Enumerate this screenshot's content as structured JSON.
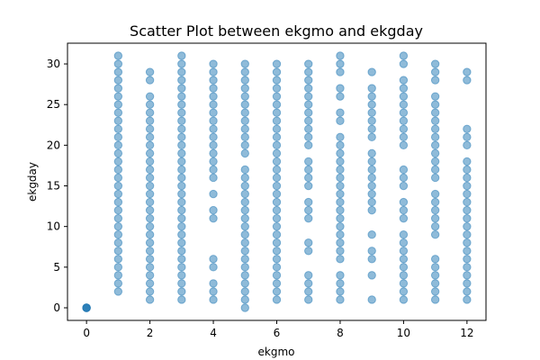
{
  "chart_data": {
    "type": "scatter",
    "title": "Scatter Plot between ekgmo and ekgday",
    "xlabel": "ekgmo",
    "ylabel": "ekgday",
    "xlim": [
      -0.6,
      12.6
    ],
    "ylim": [
      -1.55,
      32.55
    ],
    "xticks": [
      0,
      2,
      4,
      6,
      8,
      10,
      12
    ],
    "yticks": [
      0,
      5,
      10,
      15,
      20,
      25,
      30
    ],
    "grid": false,
    "marker_color": "#1f77b4",
    "marker_alpha": 0.5,
    "points": [
      {
        "x": 0,
        "y": [
          0,
          0,
          0,
          0
        ]
      },
      {
        "x": 1,
        "y": [
          2,
          3,
          4,
          5,
          6,
          7,
          8,
          9,
          10,
          11,
          12,
          13,
          14,
          15,
          16,
          17,
          18,
          19,
          20,
          21,
          22,
          23,
          24,
          25,
          26,
          27,
          28,
          29,
          30,
          31
        ]
      },
      {
        "x": 2,
        "y": [
          1,
          2,
          3,
          4,
          5,
          6,
          7,
          8,
          9,
          10,
          11,
          12,
          13,
          14,
          15,
          16,
          17,
          18,
          19,
          20,
          21,
          22,
          23,
          24,
          25,
          26,
          28,
          29
        ]
      },
      {
        "x": 3,
        "y": [
          1,
          2,
          3,
          4,
          5,
          6,
          7,
          8,
          9,
          10,
          11,
          12,
          13,
          14,
          15,
          16,
          17,
          18,
          19,
          20,
          21,
          22,
          23,
          24,
          25,
          26,
          27,
          28,
          29,
          30,
          31
        ]
      },
      {
        "x": 4,
        "y": [
          1,
          2,
          3,
          5,
          6,
          11,
          12,
          14,
          16,
          17,
          18,
          19,
          20,
          21,
          22,
          23,
          24,
          25,
          26,
          27,
          28,
          29,
          30
        ]
      },
      {
        "x": 5,
        "y": [
          0,
          1,
          2,
          3,
          4,
          5,
          6,
          7,
          8,
          9,
          10,
          11,
          12,
          13,
          14,
          15,
          16,
          17,
          19,
          20,
          21,
          22,
          23,
          24,
          25,
          26,
          27,
          28,
          29,
          30
        ]
      },
      {
        "x": 6,
        "y": [
          1,
          2,
          3,
          4,
          5,
          6,
          7,
          8,
          9,
          10,
          11,
          12,
          13,
          14,
          15,
          16,
          17,
          18,
          19,
          20,
          21,
          22,
          23,
          24,
          25,
          26,
          27,
          28,
          29,
          30
        ]
      },
      {
        "x": 7,
        "y": [
          1,
          2,
          3,
          4,
          7,
          8,
          11,
          12,
          13,
          15,
          16,
          17,
          18,
          20,
          21,
          22,
          23,
          24,
          25,
          26,
          27,
          28,
          29,
          30
        ]
      },
      {
        "x": 8,
        "y": [
          1,
          2,
          3,
          4,
          6,
          7,
          8,
          9,
          10,
          11,
          12,
          13,
          14,
          15,
          16,
          17,
          18,
          19,
          20,
          21,
          23,
          24,
          26,
          27,
          29,
          30,
          31
        ]
      },
      {
        "x": 9,
        "y": [
          1,
          4,
          6,
          7,
          9,
          12,
          13,
          14,
          15,
          16,
          17,
          18,
          19,
          21,
          22,
          23,
          24,
          25,
          26,
          27,
          29
        ]
      },
      {
        "x": 10,
        "y": [
          1,
          2,
          3,
          4,
          5,
          6,
          7,
          8,
          9,
          11,
          12,
          13,
          15,
          16,
          17,
          20,
          21,
          22,
          23,
          24,
          25,
          26,
          27,
          28,
          30,
          31
        ]
      },
      {
        "x": 11,
        "y": [
          1,
          2,
          3,
          4,
          5,
          6,
          9,
          10,
          11,
          12,
          13,
          14,
          16,
          17,
          18,
          19,
          20,
          21,
          22,
          23,
          24,
          25,
          26,
          28,
          29,
          30
        ]
      },
      {
        "x": 12,
        "y": [
          1,
          2,
          3,
          4,
          5,
          6,
          7,
          8,
          9,
          10,
          11,
          12,
          13,
          14,
          15,
          16,
          17,
          18,
          20,
          21,
          22,
          28,
          29
        ]
      }
    ]
  }
}
